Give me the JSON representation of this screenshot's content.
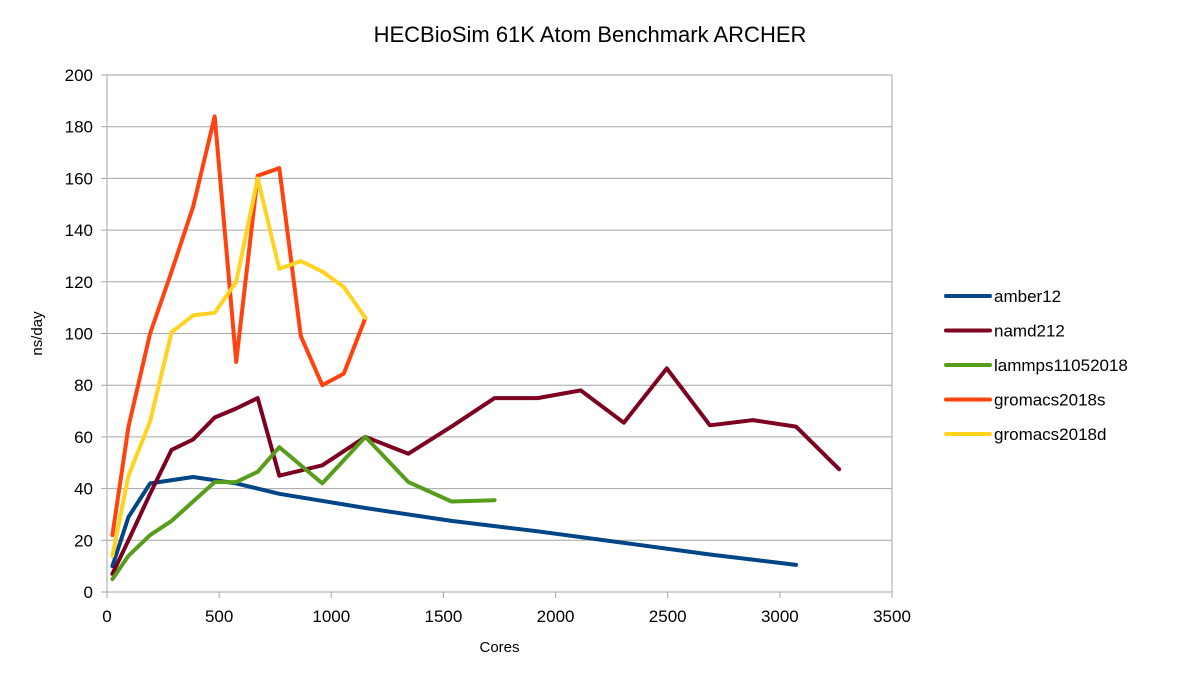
{
  "chart_data": {
    "type": "line",
    "title": "HECBioSim 61K Atom Benchmark ARCHER",
    "xlabel": "Cores",
    "ylabel": "ns/day",
    "xlim": [
      0,
      3500
    ],
    "ylim": [
      0,
      200
    ],
    "xticks": [
      0,
      500,
      1000,
      1500,
      2000,
      2500,
      3000,
      3500
    ],
    "yticks": [
      0,
      20,
      40,
      60,
      80,
      100,
      120,
      140,
      160,
      180,
      200
    ],
    "grid": "horizontal",
    "legend_position": "right",
    "series": [
      {
        "name": "amber12",
        "color": "#004586",
        "x": [
          24,
          96,
          192,
          384,
          576,
          768,
          1152,
          1536,
          1920,
          2304,
          2688,
          3072
        ],
        "y": [
          10,
          29,
          42,
          44.5,
          42,
          38,
          32.5,
          27.5,
          23.5,
          19,
          14.5,
          10.5
        ]
      },
      {
        "name": "namd212",
        "color": "#7e0021",
        "x": [
          24,
          96,
          192,
          288,
          384,
          480,
          576,
          672,
          768,
          960,
          1152,
          1344,
          1536,
          1728,
          1920,
          2112,
          2304,
          2496,
          2688,
          2880,
          3072,
          3264
        ],
        "y": [
          7,
          20,
          38,
          55,
          59,
          67.5,
          71,
          75,
          45,
          49,
          60,
          53.5,
          64,
          75,
          75,
          78,
          65.5,
          86.5,
          64.5,
          66.5,
          64,
          47.5
        ]
      },
      {
        "name": "lammps11052018",
        "color": "#579d1c",
        "x": [
          24,
          96,
          192,
          288,
          384,
          480,
          576,
          672,
          768,
          960,
          1152,
          1344,
          1536,
          1728
        ],
        "y": [
          5,
          14,
          22,
          27.5,
          35,
          42.5,
          42.5,
          46.5,
          56,
          42,
          60,
          42.5,
          35,
          35.5
        ]
      },
      {
        "name": "gromacs2018s",
        "color": "#ff420e",
        "x": [
          24,
          96,
          192,
          288,
          384,
          480,
          576,
          672,
          768,
          864,
          960,
          1056,
          1152
        ],
        "y": [
          22,
          64,
          100,
          124,
          149,
          184,
          89,
          161,
          164,
          99,
          80,
          84.5,
          106
        ]
      },
      {
        "name": "gromacs2018d",
        "color": "#ffd320",
        "x": [
          24,
          96,
          192,
          288,
          384,
          480,
          576,
          672,
          768,
          864,
          960,
          1056,
          1152
        ],
        "y": [
          14,
          45,
          66,
          100.5,
          107,
          108,
          120,
          160,
          125,
          128,
          124,
          118,
          106
        ]
      }
    ]
  }
}
